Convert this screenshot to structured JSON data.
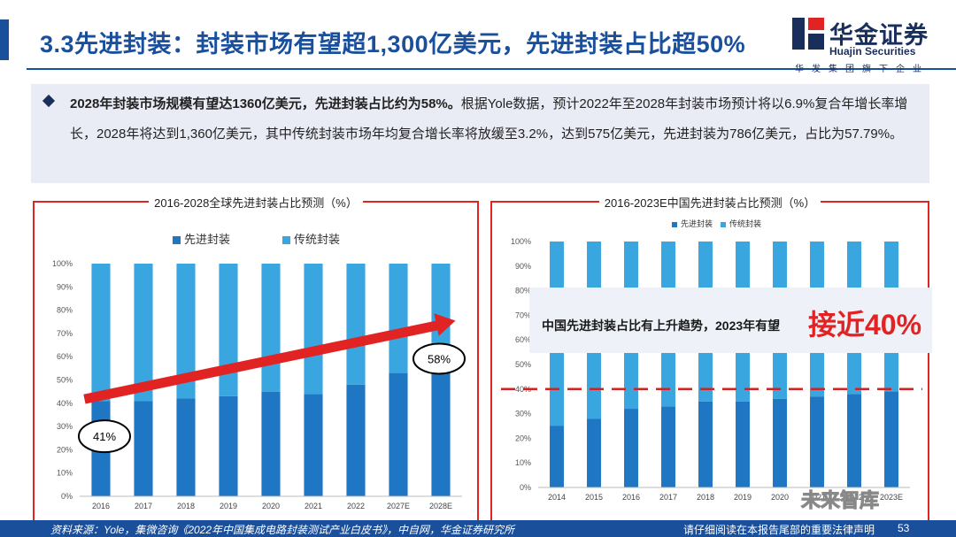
{
  "header": {
    "title": "3.3先进封装：封装市场有望超1,300亿美元，先进封装占比超50%",
    "logo_cn": "华金证券",
    "logo_en": "Huajin Securities",
    "logo_tagline": "华发集团旗下企业"
  },
  "summary": {
    "bold": "2028年封装市场规模有望达1360亿美元，先进封装占比约为58%。",
    "rest": "根据Yole数据，预计2022年至2028年封装市场预计将以6.9%复合年增长率增长，2028年将达到1,360亿美元，其中传统封装市场年均复合增长率将放缓至3.2%，达到575亿美元，先进封装为786亿美元，占比为57.79%。"
  },
  "callout": {
    "text": "中国先进封装占比有上升趋势，2023年有望",
    "highlight": "接近40%"
  },
  "footer": {
    "source": "资料来源：Yole，集微咨询《2022年中国集成电路封装测试产业白皮书》，中自网，华金证券研究所",
    "note": "请仔细阅读在本报告尾部的重要法律声明",
    "page": "53"
  },
  "watermark": "未来智库",
  "colors": {
    "advanced": "#1f77c4",
    "traditional": "#3aa6e0",
    "accent_red": "#e22323",
    "brand_blue": "#1a4f9c"
  },
  "chart_data": [
    {
      "type": "bar",
      "stacked": true,
      "title": "2016-2028全球先进封装占比预测（%）",
      "categories": [
        "2016",
        "2017",
        "2018",
        "2019",
        "2020",
        "2021",
        "2022",
        "2027E",
        "2028E"
      ],
      "series": [
        {
          "name": "先进封装",
          "values": [
            41,
            41,
            42,
            43,
            45,
            44,
            48,
            53,
            58
          ]
        },
        {
          "name": "传统封装",
          "values": [
            59,
            59,
            58,
            57,
            55,
            56,
            52,
            47,
            42
          ]
        }
      ],
      "ylim": [
        0,
        100
      ],
      "yticks": [
        "0%",
        "10%",
        "20%",
        "30%",
        "40%",
        "50%",
        "60%",
        "70%",
        "80%",
        "90%",
        "100%"
      ],
      "legend": "top",
      "annotations": [
        "41%",
        "58%"
      ],
      "trend_arrow": true
    },
    {
      "type": "bar",
      "stacked": true,
      "title": "2016-2023E中国先进封装占比预测（%）",
      "categories": [
        "2014",
        "2015",
        "2016",
        "2017",
        "2018",
        "2019",
        "2020",
        "2021",
        "2022",
        "2023E"
      ],
      "series": [
        {
          "name": "先进封装",
          "values": [
            25,
            28,
            32,
            33,
            35,
            35,
            36,
            37,
            38,
            39
          ]
        },
        {
          "name": "传统封装",
          "values": [
            75,
            72,
            68,
            67,
            65,
            65,
            64,
            63,
            62,
            61
          ]
        }
      ],
      "ylim": [
        0,
        100
      ],
      "yticks": [
        "0%",
        "10%",
        "20%",
        "30%",
        "40%",
        "50%",
        "60%",
        "70%",
        "80%",
        "90%",
        "100%"
      ],
      "legend": "top",
      "reference_line": 40
    }
  ]
}
